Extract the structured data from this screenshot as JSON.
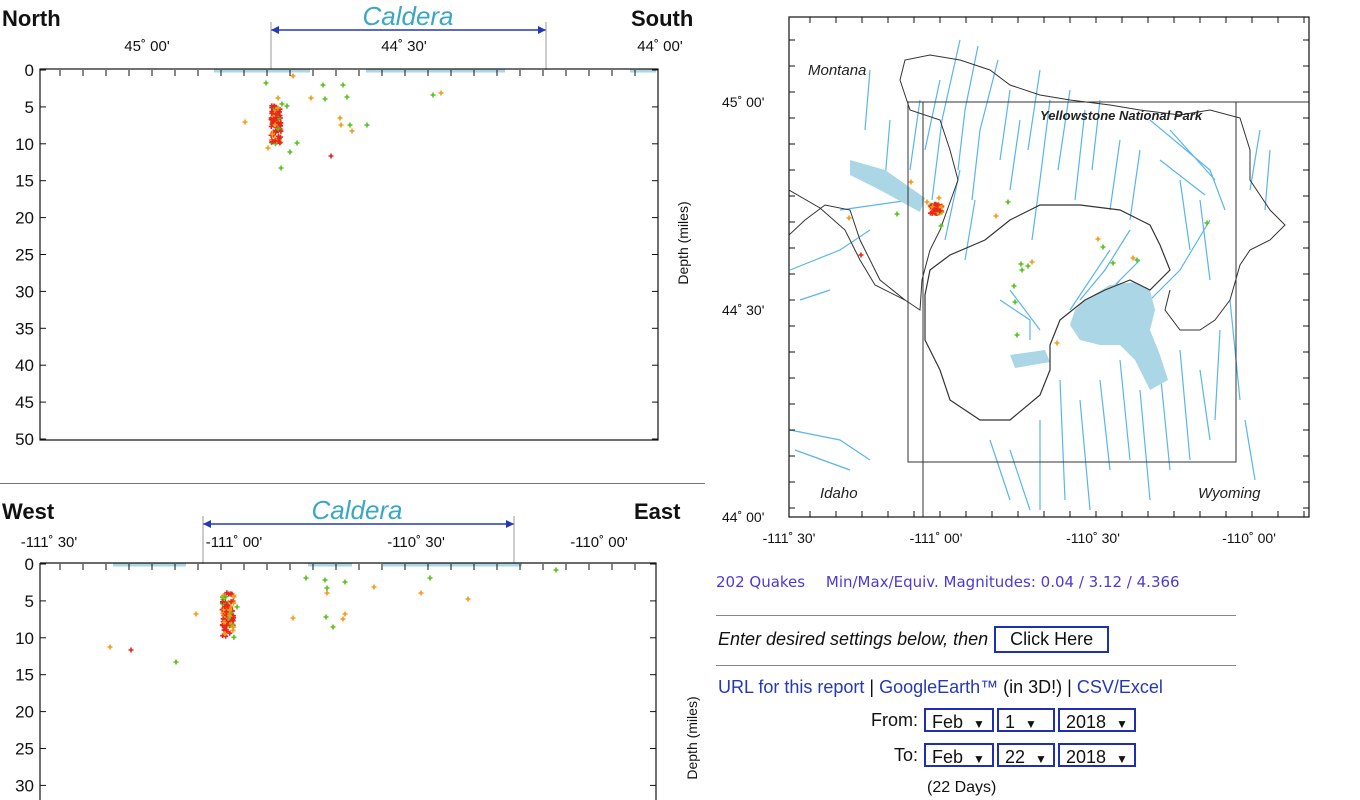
{
  "ns_section": {
    "left_word": "North",
    "right_word": "South",
    "caldera": "Caldera",
    "top_ticks": [
      "45˚ 00'",
      "44˚ 30'",
      "44˚ 00'"
    ],
    "depth_ticks": [
      "0",
      "5",
      "10",
      "15",
      "20",
      "25",
      "30",
      "35",
      "40",
      "45",
      "50"
    ],
    "axis_label": "Depth (miles)"
  },
  "we_section": {
    "left_word": "West",
    "right_word": "East",
    "caldera": "Caldera",
    "top_ticks": [
      "-111˚ 30'",
      "-111˚ 00'",
      "-110˚ 30'",
      "-110˚ 00'"
    ],
    "depth_ticks": [
      "0",
      "5",
      "10",
      "15",
      "20",
      "25",
      "30"
    ],
    "axis_label": "Depth (miles)"
  },
  "map": {
    "lat_ticks": [
      "45˚ 00'",
      "44˚ 30'",
      "44˚ 00'"
    ],
    "lon_ticks": [
      "-111˚ 30'",
      "-111˚ 00'",
      "-110˚ 30'",
      "-110˚ 00'"
    ],
    "labels": {
      "montana": "Montana",
      "park": "Yellowstone National Park",
      "idaho": "Idaho",
      "wyoming": "Wyoming"
    }
  },
  "stats": {
    "quakes": "202 Quakes",
    "magnitudes": "Min/Max/Equiv. Magnitudes: 0.04 / 3.12 / 4.366"
  },
  "controls": {
    "prompt": "Enter desired settings below, then",
    "button": "Click Here",
    "links": {
      "url": "URL for this report",
      "sep1": " | ",
      "google": "GoogleEarth™",
      "in3d": " (in 3D!) | ",
      "csv": "CSV/Excel"
    },
    "from_label": "From:",
    "from": {
      "month": "Feb",
      "day": "1",
      "year": "2018"
    },
    "to_label": "To:",
    "to": {
      "month": "Feb",
      "day": "22",
      "year": "2018"
    },
    "days": "(22 Days)"
  },
  "colors": {
    "accent": "#2538b7",
    "caldera_text": "#3aa7c6",
    "water": "#aad6e6",
    "faults": "#58b6ea",
    "quake_red": "#e8261a",
    "quake_orange": "#f79a1a",
    "quake_green": "#56c21e"
  }
}
